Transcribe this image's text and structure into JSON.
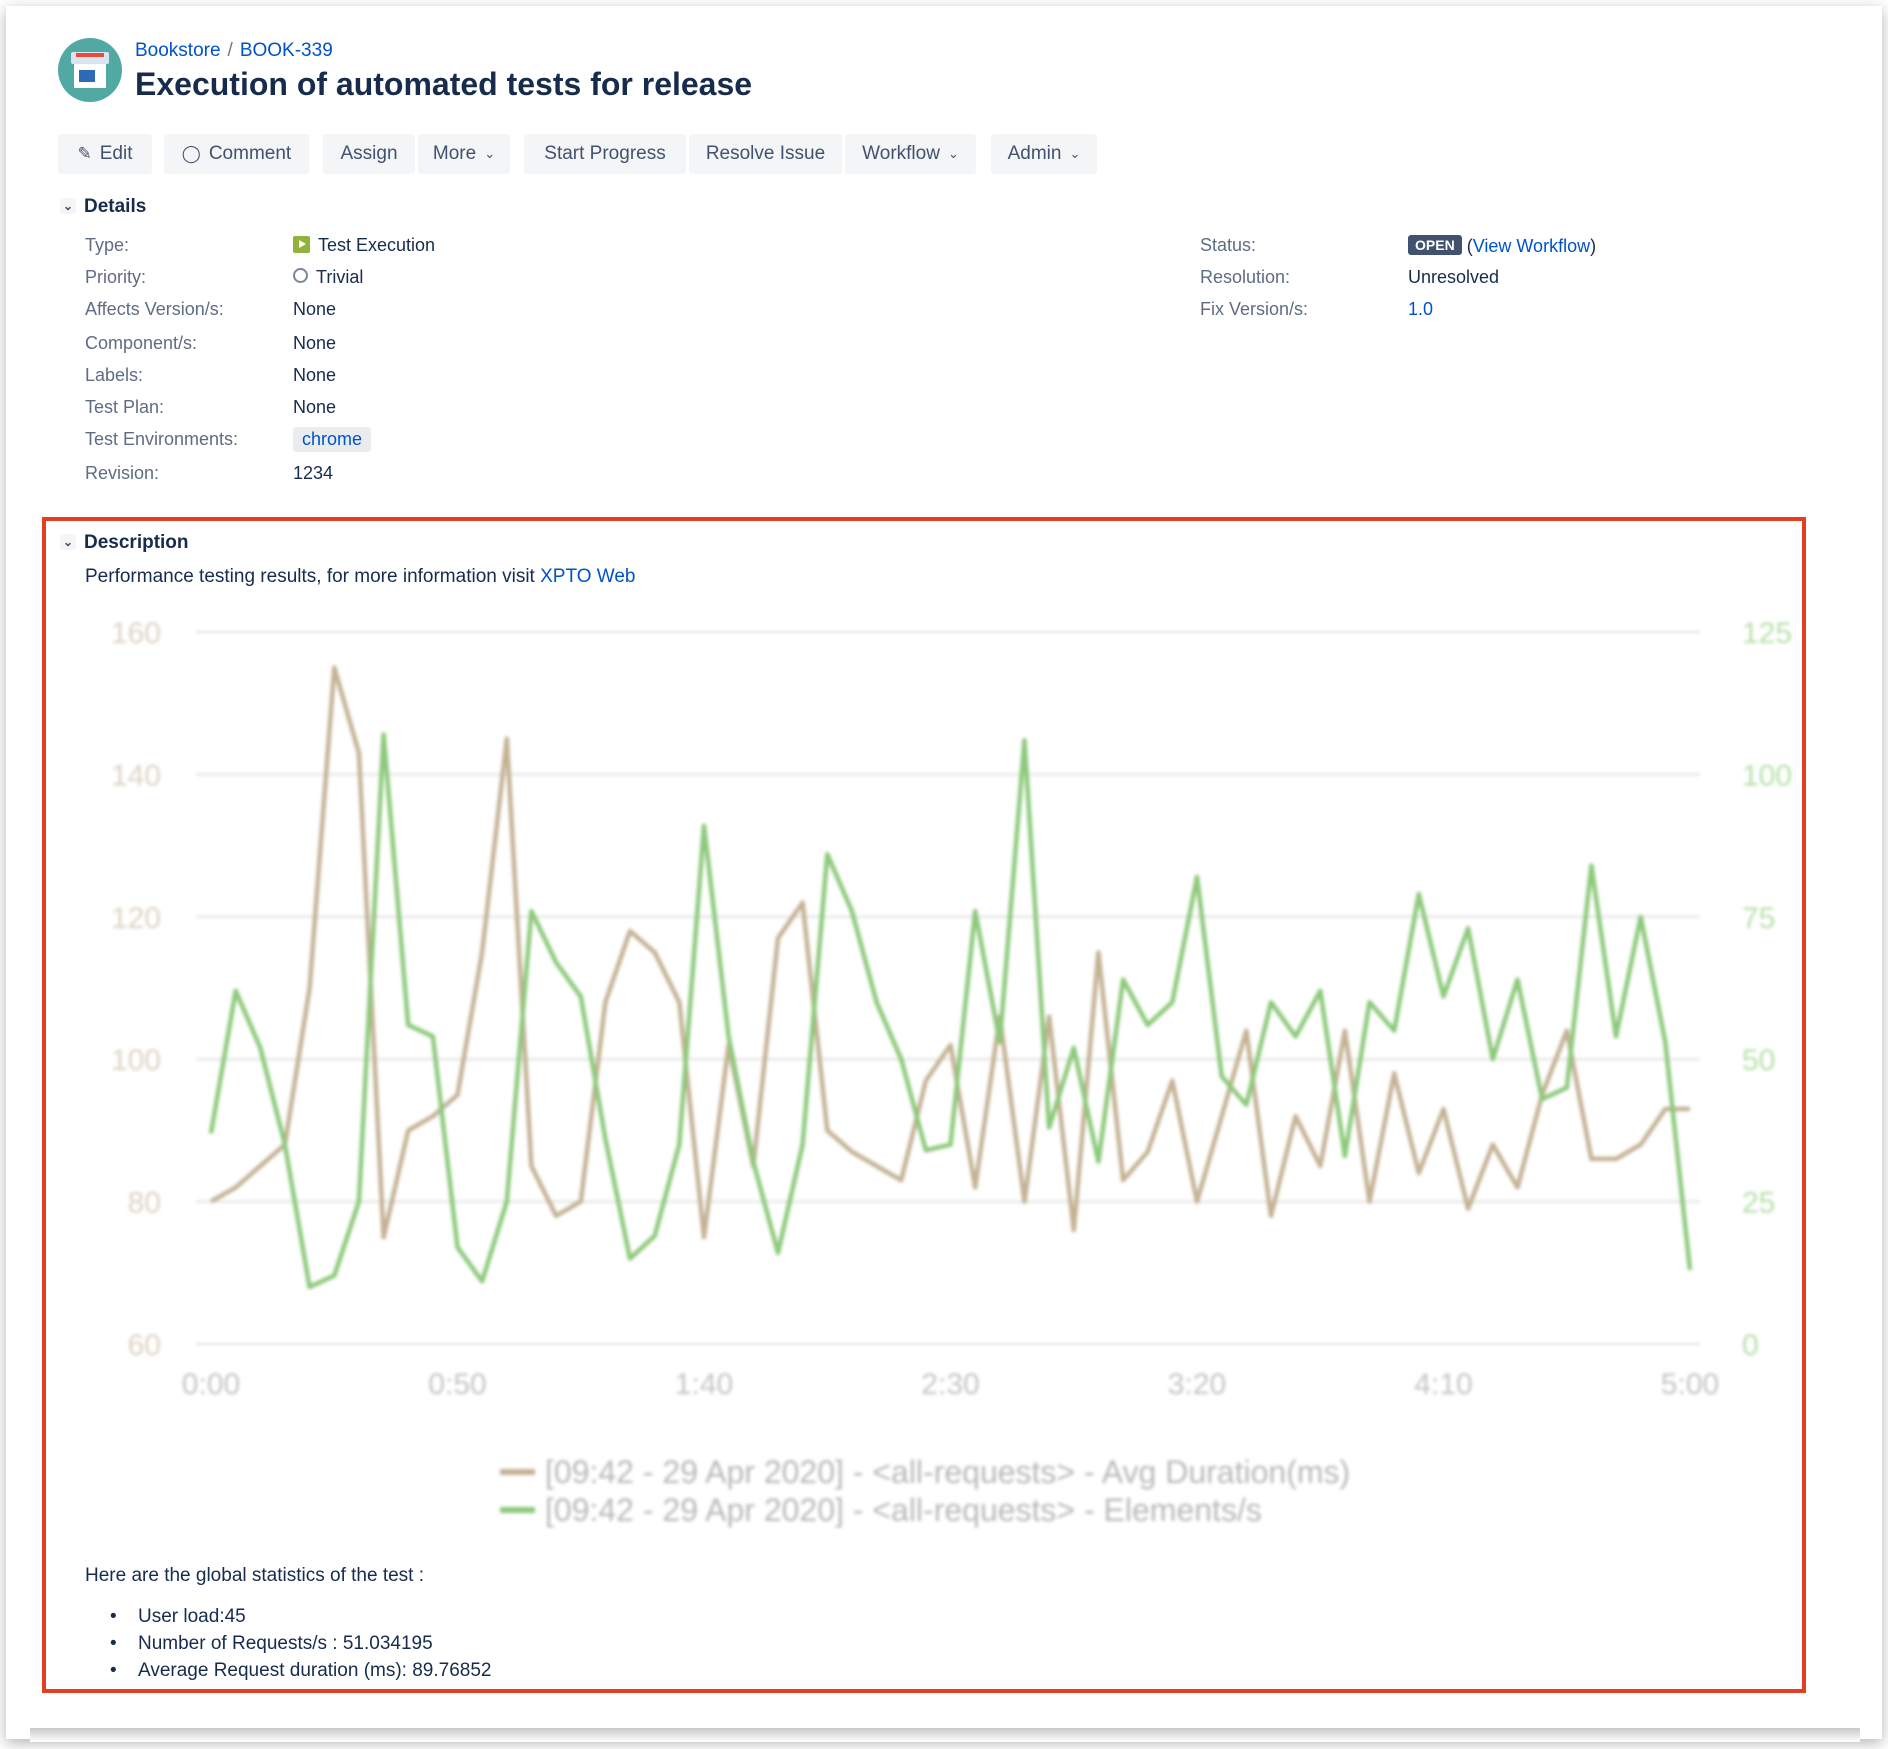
{
  "breadcrumb": {
    "project": "Bookstore",
    "separator": "/",
    "issue_key": "BOOK-339"
  },
  "issue": {
    "title": "Execution of automated tests for release"
  },
  "toolbar": {
    "edit": "Edit",
    "comment": "Comment",
    "assign": "Assign",
    "more": "More",
    "start_progress": "Start Progress",
    "resolve_issue": "Resolve Issue",
    "workflow": "Workflow",
    "admin": "Admin"
  },
  "details": {
    "heading": "Details",
    "left": [
      {
        "label": "Type:",
        "value": "Test Execution",
        "icon": "test-execution-icon"
      },
      {
        "label": "Priority:",
        "value": "Trivial",
        "icon": "priority-trivial-icon"
      },
      {
        "label": "Affects Version/s:",
        "value": "None"
      },
      {
        "label": "Component/s:",
        "value": "None"
      },
      {
        "label": "Labels:",
        "value": "None"
      },
      {
        "label": "Test Plan:",
        "value": "None"
      },
      {
        "label": "Test Environments:",
        "value": "chrome"
      },
      {
        "label": "Revision:",
        "value": "1234"
      }
    ],
    "right": [
      {
        "label": "Status:",
        "value": "OPEN",
        "extra_open": "(",
        "extra_link": "View Workflow",
        "extra_close": ")"
      },
      {
        "label": "Resolution:",
        "value": "Unresolved"
      },
      {
        "label": "Fix Version/s:",
        "value": "1.0"
      }
    ]
  },
  "description": {
    "heading": "Description",
    "intro": "Performance testing results, for more information visit ",
    "intro_link": "XPTO Web",
    "stats_heading": "Here are the global statistics of the test :",
    "stats": [
      "User load:45",
      "Number of Requests/s : 51.034195",
      "Average Request duration (ms): 89.76852"
    ]
  },
  "colors": {
    "link": "#0052cc",
    "highlight_border": "#e53d22",
    "series_duration": "#c4b294",
    "series_elements": "#8cc97a"
  },
  "chart_data": {
    "type": "line",
    "x_ticks": [
      "0:00",
      "0:50",
      "1:40",
      "2:30",
      "3:20",
      "4:10",
      "5:00"
    ],
    "xlim": [
      0,
      300
    ],
    "y_left_ticks": [
      "60",
      "80",
      "100",
      "120",
      "140",
      "160"
    ],
    "ylim_left": [
      60,
      160
    ],
    "y_right_ticks": [
      "0",
      "25",
      "50",
      "75",
      "100",
      "125"
    ],
    "ylim_right": [
      0,
      125
    ],
    "grid": true,
    "legend_placement": "bottom",
    "series": [
      {
        "name": "[09:42 - 29 Apr 2020] - <all-requests> - Avg Duration(ms)",
        "axis": "left",
        "x": [
          0,
          5,
          10,
          15,
          20,
          25,
          30,
          35,
          40,
          45,
          50,
          55,
          60,
          65,
          70,
          75,
          80,
          85,
          90,
          95,
          100,
          105,
          110,
          115,
          120,
          125,
          130,
          135,
          140,
          145,
          150,
          155,
          160,
          165,
          170,
          175,
          180,
          185,
          190,
          195,
          200,
          205,
          210,
          215,
          220,
          225,
          230,
          235,
          240,
          245,
          250,
          255,
          260,
          265,
          270,
          275,
          280,
          285,
          290,
          295,
          300
        ],
        "values": [
          80,
          82,
          85,
          88,
          110,
          155,
          143,
          75,
          90,
          92,
          95,
          115,
          145,
          85,
          78,
          80,
          108,
          118,
          115,
          108,
          75,
          102,
          85,
          117,
          122,
          90,
          87,
          85,
          83,
          97,
          102,
          82,
          106,
          80,
          106,
          76,
          115,
          83,
          87,
          97,
          80,
          92,
          104,
          78,
          92,
          85,
          104,
          80,
          98,
          84,
          93,
          79,
          88,
          82,
          95,
          104,
          86,
          86,
          88,
          93,
          93
        ]
      },
      {
        "name": "[09:42 - 29 Apr 2020] - <all-requests> - Elements/s",
        "axis": "right",
        "x": [
          0,
          5,
          10,
          15,
          20,
          25,
          30,
          35,
          40,
          45,
          50,
          55,
          60,
          65,
          70,
          75,
          80,
          85,
          90,
          95,
          100,
          105,
          110,
          115,
          120,
          125,
          130,
          135,
          140,
          145,
          150,
          155,
          160,
          165,
          170,
          175,
          180,
          185,
          190,
          195,
          200,
          205,
          210,
          215,
          220,
          225,
          230,
          235,
          240,
          245,
          250,
          255,
          260,
          265,
          270,
          275,
          280,
          285,
          290,
          295,
          300
        ],
        "values": [
          37,
          62,
          52,
          35,
          10,
          12,
          25,
          107,
          56,
          54,
          17,
          11,
          25,
          76,
          67,
          61,
          36,
          15,
          19,
          35,
          91,
          54,
          32,
          16,
          35,
          86,
          76,
          60,
          50,
          34,
          35,
          76,
          53,
          106,
          38,
          52,
          32,
          64,
          56,
          60,
          82,
          47,
          42,
          60,
          54,
          62,
          33,
          60,
          55,
          79,
          61,
          73,
          50,
          64,
          43,
          45,
          84,
          54,
          75,
          53,
          13
        ]
      }
    ]
  }
}
